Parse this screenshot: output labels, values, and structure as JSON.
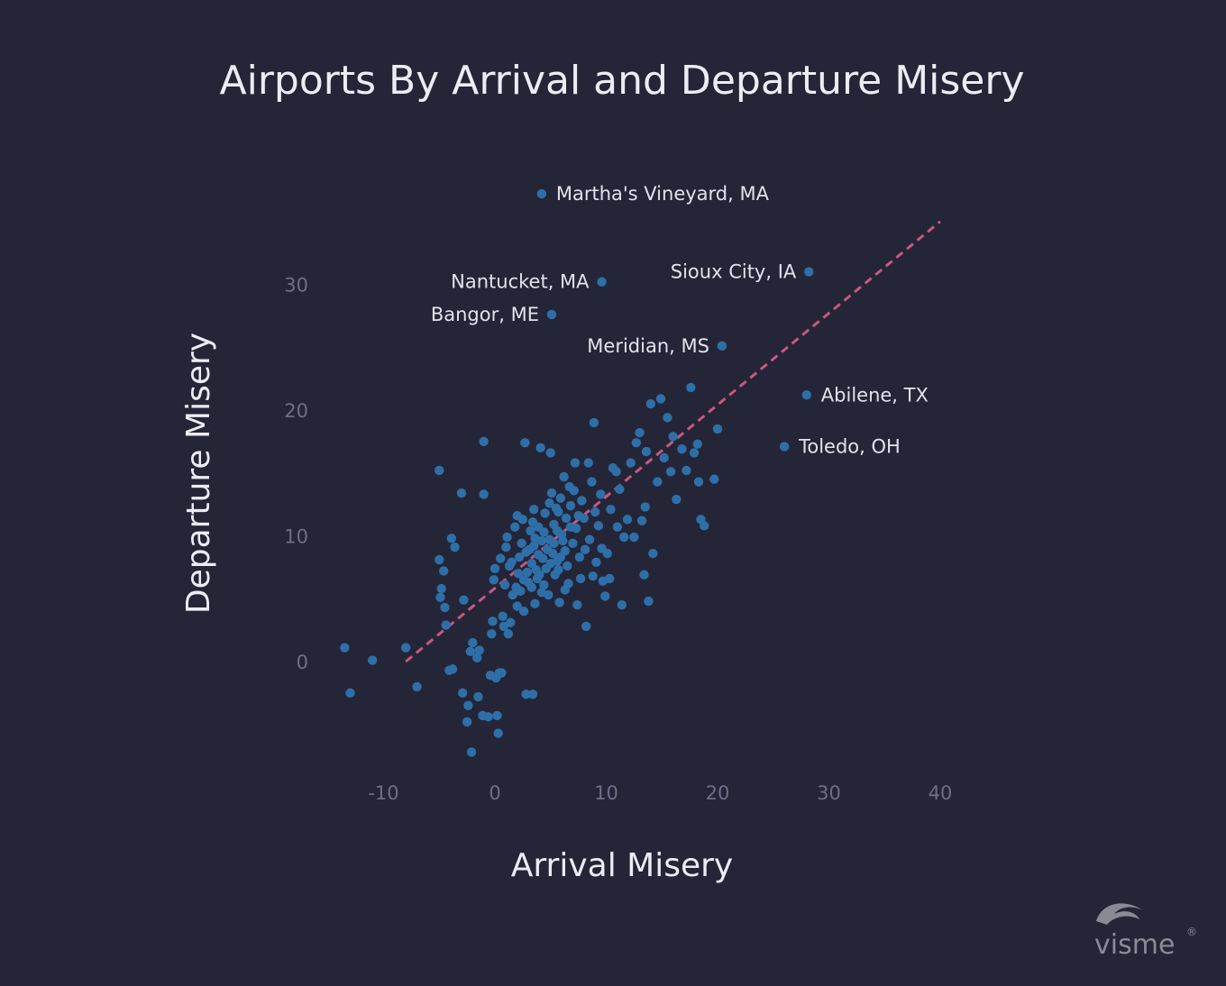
{
  "chart_data": {
    "type": "scatter",
    "title": "Airports By Arrival and Departure Misery",
    "xlabel": "Arrival Misery",
    "ylabel": "Departure Misery",
    "xlim": [
      -14,
      41
    ],
    "ylim": [
      -8,
      37
    ],
    "x_ticks": [
      -10,
      0,
      10,
      20,
      30,
      40
    ],
    "y_ticks": [
      0,
      10,
      20,
      30
    ],
    "grid": false,
    "point_color": "#2e6fa8",
    "trend_color": "#c9577f",
    "trend_line": {
      "x0": -8,
      "y0": 0,
      "x1": 40,
      "y1": 35
    },
    "labeled_points": [
      {
        "label": "Martha's Vineyard, MA",
        "x": 4.2,
        "y": 37.2,
        "side": "right"
      },
      {
        "label": "Nantucket, MA",
        "x": 9.6,
        "y": 30.2,
        "side": "left"
      },
      {
        "label": "Sioux City, IA",
        "x": 28.2,
        "y": 31.0,
        "side": "left"
      },
      {
        "label": "Bangor, ME",
        "x": 5.1,
        "y": 27.6,
        "side": "left"
      },
      {
        "label": "Meridian, MS",
        "x": 20.4,
        "y": 25.1,
        "side": "left"
      },
      {
        "label": "Abilene, TX",
        "x": 28.0,
        "y": 21.2,
        "side": "right"
      },
      {
        "label": "Toledo, OH",
        "x": 26.0,
        "y": 17.1,
        "side": "right"
      }
    ],
    "points": [
      [
        -13.5,
        1.1
      ],
      [
        -13.0,
        -2.5
      ],
      [
        -11.0,
        0.1
      ],
      [
        -8.0,
        1.1
      ],
      [
        -7.0,
        -2.0
      ],
      [
        -5.0,
        15.2
      ],
      [
        -5.0,
        8.1
      ],
      [
        -4.6,
        7.2
      ],
      [
        -4.8,
        5.8
      ],
      [
        -4.9,
        5.1
      ],
      [
        -4.5,
        4.3
      ],
      [
        -4.4,
        2.9
      ],
      [
        -3.9,
        9.8
      ],
      [
        -3.6,
        9.1
      ],
      [
        -3.8,
        -0.6
      ],
      [
        -4.1,
        -0.7
      ],
      [
        -3.0,
        13.4
      ],
      [
        -2.8,
        4.9
      ],
      [
        -2.9,
        -2.5
      ],
      [
        -2.4,
        -3.5
      ],
      [
        -2.5,
        -4.8
      ],
      [
        -2.2,
        0.8
      ],
      [
        -2.0,
        1.5
      ],
      [
        -2.1,
        -7.2
      ],
      [
        -1.6,
        0.3
      ],
      [
        -1.5,
        -2.8
      ],
      [
        -1.0,
        13.3
      ],
      [
        -1.0,
        17.5
      ],
      [
        -1.4,
        0.9
      ],
      [
        -1.1,
        -4.3
      ],
      [
        -0.6,
        -4.4
      ],
      [
        -0.4,
        -1.1
      ],
      [
        -0.3,
        2.2
      ],
      [
        -0.2,
        3.2
      ],
      [
        -0.1,
        6.5
      ],
      [
        0.0,
        7.4
      ],
      [
        0.1,
        -1.3
      ],
      [
        0.2,
        -4.3
      ],
      [
        0.3,
        -5.7
      ],
      [
        0.4,
        -0.9
      ],
      [
        0.6,
        -0.9
      ],
      [
        0.8,
        2.8
      ],
      [
        0.9,
        6.1
      ],
      [
        1.1,
        9.9
      ],
      [
        1.3,
        7.6
      ],
      [
        1.4,
        3.1
      ],
      [
        1.6,
        5.3
      ],
      [
        1.8,
        10.7
      ],
      [
        2.0,
        4.4
      ],
      [
        2.2,
        8.3
      ],
      [
        2.4,
        9.4
      ],
      [
        2.5,
        11.3
      ],
      [
        2.6,
        6.5
      ],
      [
        2.7,
        17.4
      ],
      [
        2.8,
        -2.6
      ],
      [
        2.9,
        7.1
      ],
      [
        3.1,
        8.9
      ],
      [
        3.2,
        10.4
      ],
      [
        3.3,
        5.9
      ],
      [
        3.4,
        -2.6
      ],
      [
        3.5,
        12.1
      ],
      [
        3.6,
        9.8
      ],
      [
        3.7,
        7.3
      ],
      [
        3.8,
        6.6
      ],
      [
        3.9,
        10.7
      ],
      [
        4.1,
        17.0
      ],
      [
        4.2,
        9.6
      ],
      [
        4.3,
        8.2
      ],
      [
        4.4,
        6.1
      ],
      [
        4.5,
        11.8
      ],
      [
        4.6,
        7.4
      ],
      [
        4.8,
        5.3
      ],
      [
        4.9,
        9.7
      ],
      [
        5.0,
        16.6
      ],
      [
        5.1,
        13.4
      ],
      [
        5.2,
        8.6
      ],
      [
        5.3,
        10.9
      ],
      [
        5.4,
        6.9
      ],
      [
        5.5,
        12.2
      ],
      [
        5.6,
        8.0
      ],
      [
        5.7,
        7.3
      ],
      [
        5.8,
        4.7
      ],
      [
        5.9,
        13.0
      ],
      [
        6.0,
        10.1
      ],
      [
        6.2,
        14.7
      ],
      [
        6.3,
        8.8
      ],
      [
        6.4,
        11.4
      ],
      [
        6.6,
        6.2
      ],
      [
        6.8,
        12.4
      ],
      [
        7.0,
        9.4
      ],
      [
        7.2,
        15.8
      ],
      [
        7.3,
        10.6
      ],
      [
        7.4,
        4.5
      ],
      [
        7.6,
        8.3
      ],
      [
        7.8,
        12.8
      ],
      [
        8.0,
        11.4
      ],
      [
        8.2,
        2.8
      ],
      [
        8.4,
        15.8
      ],
      [
        8.5,
        9.7
      ],
      [
        8.7,
        14.3
      ],
      [
        8.9,
        19.0
      ],
      [
        9.1,
        7.9
      ],
      [
        9.3,
        10.8
      ],
      [
        9.5,
        13.3
      ],
      [
        9.7,
        6.4
      ],
      [
        9.9,
        5.2
      ],
      [
        10.1,
        8.6
      ],
      [
        10.4,
        12.1
      ],
      [
        10.6,
        15.4
      ],
      [
        10.9,
        15.1
      ],
      [
        11.0,
        10.7
      ],
      [
        11.2,
        13.7
      ],
      [
        11.4,
        4.5
      ],
      [
        11.6,
        9.9
      ],
      [
        11.9,
        11.3
      ],
      [
        12.2,
        15.8
      ],
      [
        12.5,
        9.9
      ],
      [
        12.7,
        17.4
      ],
      [
        13.0,
        18.2
      ],
      [
        13.2,
        11.2
      ],
      [
        13.4,
        6.9
      ],
      [
        13.5,
        12.3
      ],
      [
        13.6,
        16.7
      ],
      [
        13.8,
        4.8
      ],
      [
        14.0,
        20.5
      ],
      [
        14.2,
        8.6
      ],
      [
        14.6,
        14.3
      ],
      [
        14.9,
        20.9
      ],
      [
        15.2,
        16.2
      ],
      [
        15.5,
        19.4
      ],
      [
        15.8,
        15.1
      ],
      [
        16.0,
        17.9
      ],
      [
        16.3,
        12.9
      ],
      [
        16.8,
        16.9
      ],
      [
        17.2,
        15.2
      ],
      [
        17.6,
        21.8
      ],
      [
        17.9,
        16.6
      ],
      [
        18.2,
        17.3
      ],
      [
        18.3,
        14.3
      ],
      [
        18.5,
        11.3
      ],
      [
        18.8,
        10.8
      ],
      [
        19.7,
        14.5
      ],
      [
        20.0,
        18.5
      ],
      [
        0.5,
        8.2
      ],
      [
        1.0,
        9.1
      ],
      [
        1.5,
        7.9
      ],
      [
        2.1,
        7.0
      ],
      [
        2.3,
        5.6
      ],
      [
        2.8,
        8.7
      ],
      [
        3.0,
        6.3
      ],
      [
        3.3,
        7.8
      ],
      [
        3.5,
        9.2
      ],
      [
        3.9,
        8.5
      ],
      [
        4.0,
        6.9
      ],
      [
        4.4,
        10.3
      ],
      [
        4.7,
        8.9
      ],
      [
        5.0,
        7.8
      ],
      [
        5.3,
        9.4
      ],
      [
        5.6,
        10.4
      ],
      [
        5.9,
        8.3
      ],
      [
        6.1,
        9.6
      ],
      [
        6.5,
        7.6
      ],
      [
        6.8,
        10.7
      ],
      [
        7.1,
        13.6
      ],
      [
        7.5,
        11.6
      ],
      [
        4.2,
        5.5
      ],
      [
        3.6,
        4.6
      ],
      [
        2.6,
        4.0
      ],
      [
        1.9,
        5.9
      ],
      [
        1.2,
        2.2
      ],
      [
        0.7,
        3.6
      ],
      [
        6.3,
        5.7
      ],
      [
        7.7,
        6.6
      ],
      [
        8.8,
        6.8
      ],
      [
        9.6,
        9.0
      ],
      [
        10.3,
        6.6
      ],
      [
        5.7,
        11.9
      ],
      [
        6.7,
        13.9
      ],
      [
        4.9,
        12.6
      ],
      [
        3.4,
        11.1
      ],
      [
        2.0,
        11.6
      ],
      [
        8.1,
        8.9
      ],
      [
        9.0,
        11.9
      ]
    ]
  },
  "watermark": {
    "text": "visme",
    "mark": "®"
  }
}
